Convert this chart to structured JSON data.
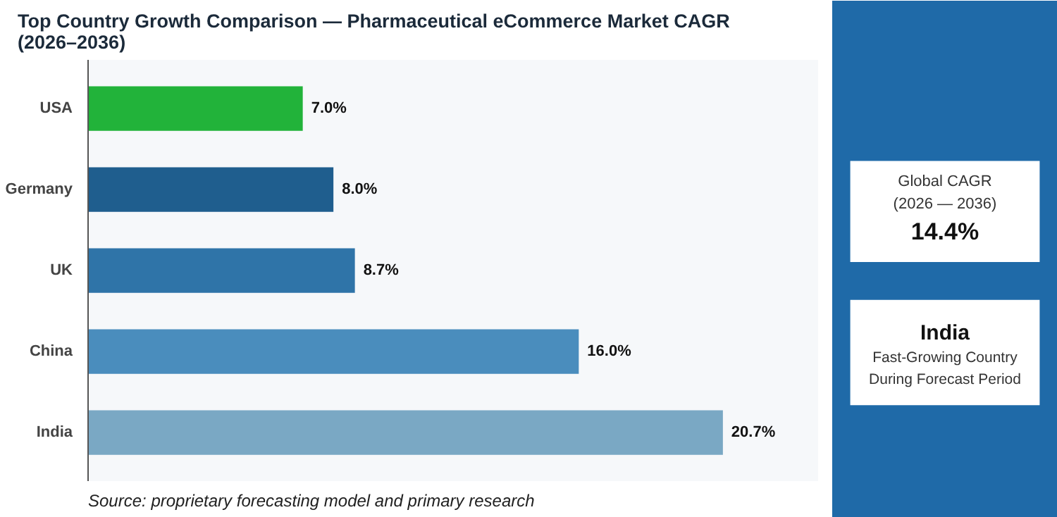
{
  "chart_data": {
    "type": "bar",
    "orientation": "horizontal",
    "title": "Top Country Growth Comparison — Pharmaceutical eCommerce Market CAGR\n(2026–2036)",
    "categories": [
      "USA",
      "Germany",
      "UK",
      "China",
      "India"
    ],
    "values": [
      7.0,
      8.0,
      8.7,
      16.0,
      20.7
    ],
    "colors": [
      "#22b33a",
      "#1f5e8e",
      "#2f74a8",
      "#4a8dbd",
      "#7aa8c4"
    ],
    "value_labels": [
      "7.0%",
      "8.0%",
      "8.7%",
      "16.0%",
      "20.7%"
    ],
    "annotations": [
      "Global CAGR\n(2026 — 2036)",
      "14.4%",
      "India",
      "Fast-Growing Country\nDuring Forecast Period",
      "Source: proprietary forecasting model and primary research"
    ]
  }
}
